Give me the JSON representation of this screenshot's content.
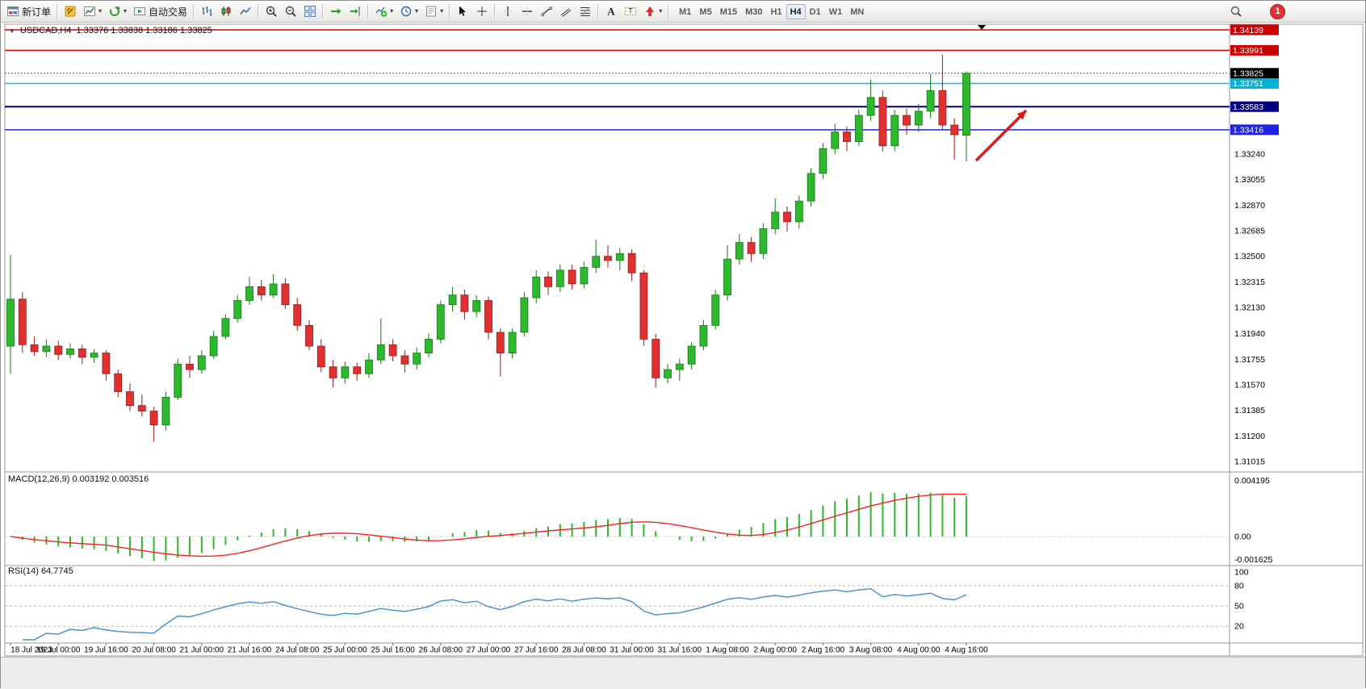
{
  "toolbar": {
    "new_order": "新订单",
    "autotrading": "自动交易",
    "timeframes": [
      "M1",
      "M5",
      "M15",
      "M30",
      "H1",
      "H4",
      "D1",
      "W1",
      "MN"
    ],
    "active_timeframe": "H4",
    "notification_badge": "1"
  },
  "chart": {
    "title_symbol": "USDCAD,H4",
    "title_ohlc": "1.33376 1.33838 1.33186 1.33825"
  },
  "chart_data": {
    "type": "candlestick",
    "symbol": "USDCAD",
    "timeframe": "H4",
    "y_range": [
      1.31015,
      1.34139
    ],
    "up_color": "#2eb82e",
    "down_color": "#e03030",
    "up_border": "#157a15",
    "down_border": "#991b1b",
    "current_price": "1.33825",
    "horizontal_lines": [
      {
        "label": "1.34139",
        "price": 1.34139,
        "color": "#e00000",
        "width": 1.5,
        "badge_color": "#cc0000"
      },
      {
        "label": "1.33991",
        "price": 1.33991,
        "color": "#e00000",
        "width": 1.5,
        "badge_color": "#cc0000"
      },
      {
        "label": "1.33825",
        "price": 1.33825,
        "color": "#555555",
        "width": 1,
        "dash": "2,2",
        "badge_color": "#000000"
      },
      {
        "label": "1.33751",
        "price": 1.33751,
        "color": "#00c3e8",
        "width": 1.5,
        "badge_color": "#00b3d6"
      },
      {
        "label": "1.33583",
        "price": 1.33583,
        "color": "#000080",
        "width": 2,
        "badge_color": "#000080"
      },
      {
        "label": "1.33416",
        "price": 1.33416,
        "color": "#2222e6",
        "width": 1.5,
        "badge_color": "#2222e6"
      }
    ],
    "price_scale_ticks": [
      "1.33240",
      "1.33055",
      "1.32870",
      "1.32685",
      "1.32500",
      "1.32315",
      "1.32130",
      "1.31940",
      "1.31755",
      "1.31570",
      "1.31385",
      "1.31200",
      "1.31015"
    ],
    "x_labels": [
      "18 Jul 2023",
      "19 Jul 00:00",
      "19 Jul 16:00",
      "20 Jul 08:00",
      "21 Jul 00:00",
      "21 Jul 16:00",
      "24 Jul 08:00",
      "25 Jul 00:00",
      "25 Jul 16:00",
      "26 Jul 08:00",
      "27 Jul 00:00",
      "27 Jul 16:00",
      "28 Jul 08:00",
      "31 Jul 00:00",
      "31 Jul 16:00",
      "1 Aug 08:00",
      "2 Aug 00:00",
      "2 Aug 16:00",
      "3 Aug 08:00",
      "4 Aug 00:00",
      "4 Aug 16:00"
    ],
    "label_every": 4,
    "candles": [
      [
        1.3185,
        1.3251,
        1.3165,
        1.3219
      ],
      [
        1.3219,
        1.3224,
        1.318,
        1.3186
      ],
      [
        1.3186,
        1.3192,
        1.3178,
        1.3181
      ],
      [
        1.3181,
        1.319,
        1.3177,
        1.3185
      ],
      [
        1.3185,
        1.3189,
        1.3175,
        1.3179
      ],
      [
        1.3179,
        1.3187,
        1.3176,
        1.3183
      ],
      [
        1.3183,
        1.3186,
        1.3172,
        1.3177
      ],
      [
        1.3177,
        1.3183,
        1.3173,
        1.318
      ],
      [
        1.318,
        1.3182,
        1.316,
        1.3165
      ],
      [
        1.3165,
        1.3168,
        1.3148,
        1.3152
      ],
      [
        1.3152,
        1.3158,
        1.3138,
        1.3142
      ],
      [
        1.3142,
        1.315,
        1.3134,
        1.3138
      ],
      [
        1.3138,
        1.3141,
        1.3116,
        1.3128
      ],
      [
        1.3128,
        1.3152,
        1.3124,
        1.3148
      ],
      [
        1.3148,
        1.3176,
        1.3146,
        1.3172
      ],
      [
        1.3172,
        1.3178,
        1.3162,
        1.3168
      ],
      [
        1.3168,
        1.3182,
        1.3165,
        1.3178
      ],
      [
        1.3178,
        1.3196,
        1.3176,
        1.3192
      ],
      [
        1.3192,
        1.3208,
        1.319,
        1.3205
      ],
      [
        1.3205,
        1.3222,
        1.3202,
        1.3218
      ],
      [
        1.3218,
        1.3235,
        1.3215,
        1.3228
      ],
      [
        1.3228,
        1.3233,
        1.3218,
        1.3222
      ],
      [
        1.3222,
        1.3237,
        1.322,
        1.323
      ],
      [
        1.323,
        1.3234,
        1.3212,
        1.3215
      ],
      [
        1.3215,
        1.322,
        1.3196,
        1.32
      ],
      [
        1.32,
        1.3204,
        1.3182,
        1.3185
      ],
      [
        1.3185,
        1.319,
        1.3166,
        1.317
      ],
      [
        1.317,
        1.3175,
        1.3155,
        1.3162
      ],
      [
        1.3162,
        1.3174,
        1.3158,
        1.317
      ],
      [
        1.317,
        1.3173,
        1.316,
        1.3165
      ],
      [
        1.3165,
        1.318,
        1.3162,
        1.3175
      ],
      [
        1.3175,
        1.3205,
        1.3172,
        1.3186
      ],
      [
        1.3186,
        1.319,
        1.3174,
        1.3178
      ],
      [
        1.3178,
        1.3182,
        1.3166,
        1.3172
      ],
      [
        1.3172,
        1.3184,
        1.3168,
        1.318
      ],
      [
        1.318,
        1.3194,
        1.3177,
        1.319
      ],
      [
        1.319,
        1.3218,
        1.3187,
        1.3215
      ],
      [
        1.3215,
        1.3228,
        1.321,
        1.3222
      ],
      [
        1.3222,
        1.3226,
        1.3204,
        1.321
      ],
      [
        1.321,
        1.3222,
        1.3206,
        1.3218
      ],
      [
        1.3218,
        1.3221,
        1.319,
        1.3195
      ],
      [
        1.3195,
        1.3198,
        1.3163,
        1.318
      ],
      [
        1.318,
        1.3198,
        1.3176,
        1.3195
      ],
      [
        1.3195,
        1.3224,
        1.3192,
        1.322
      ],
      [
        1.322,
        1.324,
        1.3216,
        1.3235
      ],
      [
        1.3235,
        1.3239,
        1.3222,
        1.3228
      ],
      [
        1.3228,
        1.3244,
        1.3224,
        1.324
      ],
      [
        1.324,
        1.3244,
        1.3226,
        1.323
      ],
      [
        1.323,
        1.3246,
        1.3227,
        1.3242
      ],
      [
        1.3242,
        1.3262,
        1.3238,
        1.325
      ],
      [
        1.325,
        1.3258,
        1.3242,
        1.3247
      ],
      [
        1.3247,
        1.3256,
        1.324,
        1.3252
      ],
      [
        1.3252,
        1.3255,
        1.3232,
        1.3238
      ],
      [
        1.3238,
        1.324,
        1.3185,
        1.319
      ],
      [
        1.319,
        1.3194,
        1.3155,
        1.3162
      ],
      [
        1.3162,
        1.3172,
        1.3158,
        1.3168
      ],
      [
        1.3168,
        1.3176,
        1.316,
        1.3172
      ],
      [
        1.3172,
        1.3188,
        1.3168,
        1.3185
      ],
      [
        1.3185,
        1.3204,
        1.3182,
        1.32
      ],
      [
        1.32,
        1.3226,
        1.3197,
        1.3222
      ],
      [
        1.3222,
        1.3258,
        1.3218,
        1.3248
      ],
      [
        1.3248,
        1.3266,
        1.3244,
        1.326
      ],
      [
        1.326,
        1.3264,
        1.3246,
        1.3252
      ],
      [
        1.3252,
        1.3274,
        1.3248,
        1.327
      ],
      [
        1.327,
        1.3292,
        1.3266,
        1.3282
      ],
      [
        1.3282,
        1.3286,
        1.3268,
        1.3275
      ],
      [
        1.3275,
        1.3294,
        1.327,
        1.329
      ],
      [
        1.329,
        1.3314,
        1.3286,
        1.331
      ],
      [
        1.331,
        1.3332,
        1.3306,
        1.3328
      ],
      [
        1.3328,
        1.3346,
        1.3324,
        1.334
      ],
      [
        1.334,
        1.3344,
        1.3326,
        1.3333
      ],
      [
        1.3333,
        1.3356,
        1.333,
        1.3352
      ],
      [
        1.3352,
        1.3378,
        1.3348,
        1.3365
      ],
      [
        1.3365,
        1.337,
        1.3326,
        1.333
      ],
      [
        1.333,
        1.3356,
        1.3326,
        1.3352
      ],
      [
        1.3352,
        1.3357,
        1.3338,
        1.3345
      ],
      [
        1.3345,
        1.336,
        1.334,
        1.3355
      ],
      [
        1.3355,
        1.3382,
        1.335,
        1.337
      ],
      [
        1.337,
        1.3396,
        1.3342,
        1.3345
      ],
      [
        1.3345,
        1.335,
        1.332,
        1.3338
      ],
      [
        1.33376,
        1.33838,
        1.33186,
        1.33825
      ]
    ],
    "indicators": [
      {
        "type": "macd",
        "params": [
          12,
          26,
          9
        ],
        "label": "MACD(12,26,9) 0.003192 0.003516",
        "values_text": [
          "0.003192",
          "0.003516"
        ],
        "scale_labels": [
          "0.004195",
          "0.00",
          "-0.001625"
        ],
        "histogram_color": "#2eb82e",
        "signal_color": "#ff2020"
      },
      {
        "type": "rsi",
        "params": [
          14
        ],
        "label": "RSI(14) 64.7745",
        "value_text": "64.7745",
        "levels": [
          80,
          50,
          20
        ],
        "scale_labels": [
          "100",
          "80",
          "50",
          "20"
        ],
        "line_color": "#3f8fd2"
      }
    ],
    "annotation_arrow": {
      "from": [
        1208,
        198
      ],
      "to": [
        1270,
        136
      ],
      "color": "#e81616"
    }
  }
}
